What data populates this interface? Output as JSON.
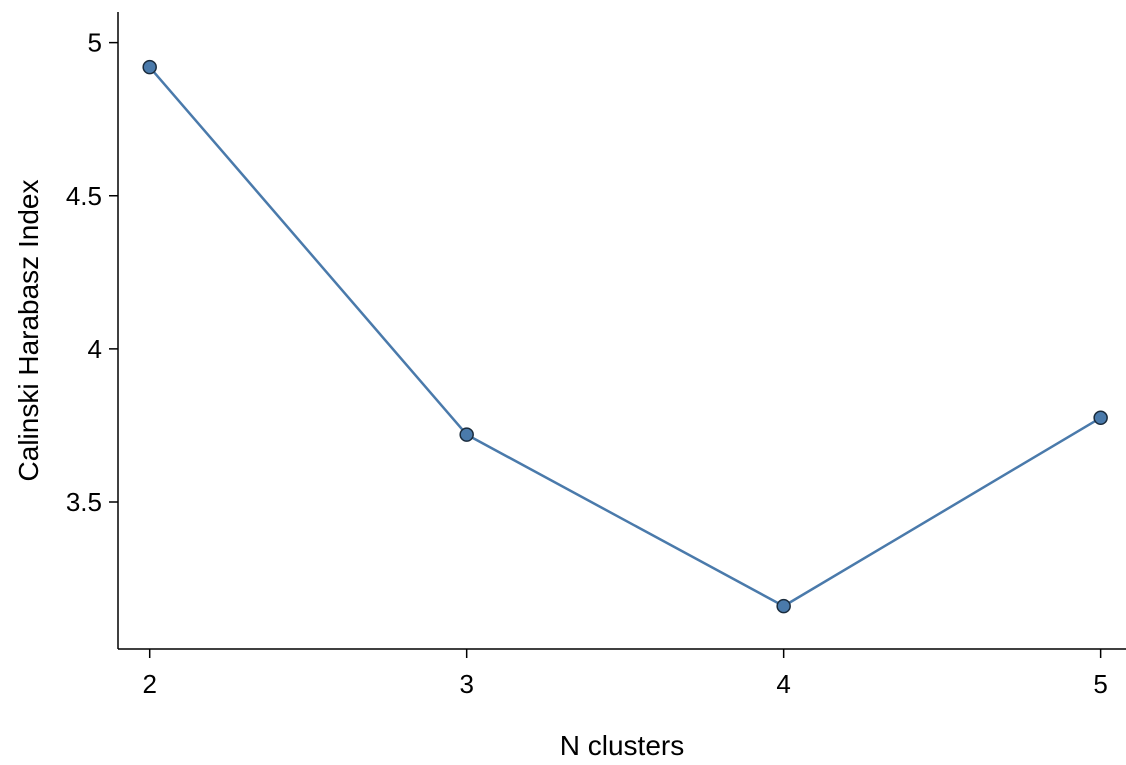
{
  "chart_data": {
    "type": "line",
    "title": "",
    "xlabel": "N clusters",
    "ylabel": "Calinski Harabasz Index",
    "x": [
      2,
      3,
      4,
      5
    ],
    "series": [
      {
        "values": [
          4.92,
          3.72,
          3.16,
          3.775
        ]
      }
    ],
    "xlim": [
      1.9,
      5.08
    ],
    "ylim": [
      3.02,
      5.1
    ],
    "xticks": [
      2,
      3,
      4,
      5
    ],
    "xtick_labels": [
      "2",
      "3",
      "4",
      "5"
    ],
    "yticks": [
      3.5,
      4,
      4.5,
      5
    ],
    "ytick_labels": [
      "3.5",
      "4",
      "4.5",
      "5"
    ],
    "grid": false,
    "legend": "none",
    "colors": {
      "line": "#4a7aab",
      "marker_fill": "#4a7aab",
      "marker_edge": "#1a2b3c",
      "axis": "#000000"
    }
  }
}
